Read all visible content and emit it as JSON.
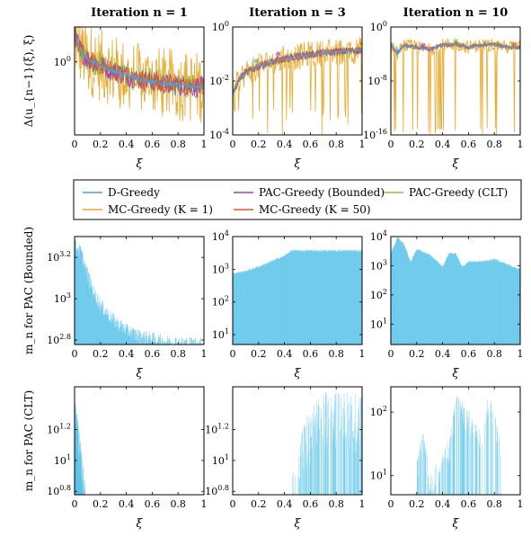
{
  "columns": [
    {
      "title": "Iteration n = 1"
    },
    {
      "title": "Iteration n = 3"
    },
    {
      "title": "Iteration n = 10"
    }
  ],
  "row_ylabels": [
    "Δ(u_{n−1}(ξ), ξ)",
    "m_n for PAC (Bounded)",
    "m_n for PAC (CLT)"
  ],
  "xlabel": "ξ",
  "legend": [
    {
      "name": "D-Greedy",
      "color": "#4aa3d6"
    },
    {
      "name": "PAC-Greedy (Bounded)",
      "color": "#a040b8"
    },
    {
      "name": "PAC-Greedy (CLT)",
      "color": "#8fbf3a"
    },
    {
      "name": "MC-Greedy (K = 1)",
      "color": "#e8a92e"
    },
    {
      "name": "MC-Greedy (K = 50)",
      "color": "#d85a2a"
    }
  ],
  "chart_data": [
    {
      "panel": "r1c1",
      "type": "line",
      "title": "Iteration n = 1",
      "xlabel": "ξ",
      "ylabel": "Δ(u_{n−1}(ξ), ξ)",
      "xlim": [
        0,
        1
      ],
      "xticks": [
        "0",
        "0.2",
        "0.4",
        "0.6",
        "0.8",
        "1"
      ],
      "yscale": "log",
      "ylim": [
        0.1,
        3
      ],
      "yticks": [
        "10^0"
      ],
      "series": [
        {
          "name": "D-Greedy",
          "values": [
            [
              0,
              2.2
            ],
            [
              0.05,
              1.4
            ],
            [
              0.1,
              1.1
            ],
            [
              0.2,
              0.9
            ],
            [
              0.3,
              0.75
            ],
            [
              0.4,
              0.65
            ],
            [
              0.5,
              0.58
            ],
            [
              0.6,
              0.54
            ],
            [
              0.7,
              0.5
            ],
            [
              0.8,
              0.48
            ],
            [
              0.9,
              0.46
            ],
            [
              1,
              0.45
            ]
          ]
        }
      ]
    },
    {
      "panel": "r1c2",
      "type": "line",
      "title": "Iteration n = 3",
      "xlabel": "ξ",
      "ylabel": "",
      "xlim": [
        0,
        1
      ],
      "xticks": [
        "0",
        "0.2",
        "0.4",
        "0.6",
        "0.8",
        "1"
      ],
      "yscale": "log",
      "ylim": [
        0.0001,
        1
      ],
      "yticks": [
        "10^-4",
        "10^-2",
        "10^0"
      ],
      "series": [
        {
          "name": "D-Greedy",
          "values": [
            [
              0,
              0.003
            ],
            [
              0.05,
              0.012
            ],
            [
              0.1,
              0.02
            ],
            [
              0.2,
              0.035
            ],
            [
              0.3,
              0.05
            ],
            [
              0.4,
              0.065
            ],
            [
              0.5,
              0.08
            ],
            [
              0.6,
              0.095
            ],
            [
              0.7,
              0.11
            ],
            [
              0.8,
              0.12
            ],
            [
              0.9,
              0.13
            ],
            [
              1,
              0.14
            ]
          ]
        }
      ]
    },
    {
      "panel": "r1c3",
      "type": "line",
      "title": "Iteration n = 10",
      "xlabel": "ξ",
      "ylabel": "",
      "xlim": [
        0,
        1
      ],
      "xticks": [
        "0",
        "0.2",
        "0.4",
        "0.6",
        "0.8",
        "1"
      ],
      "yscale": "log",
      "ylim": [
        1e-16,
        1
      ],
      "yticks": [
        "10^-16",
        "10^-8",
        "10^0"
      ],
      "series": [
        {
          "name": "D-Greedy",
          "values": [
            [
              0,
              0.003
            ],
            [
              0.05,
              0.0001
            ],
            [
              0.1,
              0.002
            ],
            [
              0.2,
              0.001
            ],
            [
              0.3,
              0.0005
            ],
            [
              0.4,
              0.002
            ],
            [
              0.5,
              0.003
            ],
            [
              0.6,
              0.001
            ],
            [
              0.7,
              0.002
            ],
            [
              0.8,
              0.003
            ],
            [
              0.9,
              0.001
            ],
            [
              1,
              0.001
            ]
          ]
        }
      ]
    },
    {
      "panel": "r2c1",
      "type": "bar",
      "xlabel": "ξ",
      "ylabel": "m_n for PAC (Bounded)",
      "xlim": [
        0,
        1
      ],
      "xticks": [
        "0",
        "0.2",
        "0.4",
        "0.6",
        "0.8",
        "1"
      ],
      "yscale": "log",
      "ylim": [
        600,
        2000
      ],
      "yticks": [
        "10^2.8",
        "10^3",
        "10^3.2"
      ],
      "values": [
        [
          0,
          2000
        ],
        [
          0.05,
          1800
        ],
        [
          0.1,
          1400
        ],
        [
          0.15,
          1150
        ],
        [
          0.2,
          1000
        ],
        [
          0.3,
          850
        ],
        [
          0.4,
          760
        ],
        [
          0.5,
          710
        ],
        [
          0.6,
          690
        ],
        [
          0.7,
          670
        ],
        [
          0.8,
          660
        ],
        [
          0.9,
          655
        ],
        [
          1,
          650
        ]
      ]
    },
    {
      "panel": "r2c2",
      "type": "bar",
      "xlabel": "ξ",
      "ylabel": "",
      "xlim": [
        0,
        1
      ],
      "xticks": [
        "0",
        "0.2",
        "0.4",
        "0.6",
        "0.8",
        "1"
      ],
      "yscale": "log",
      "ylim": [
        5,
        10000
      ],
      "yticks": [
        "10^1",
        "10^2",
        "10^3",
        "10^4"
      ],
      "values": [
        [
          0,
          800
        ],
        [
          0.1,
          950
        ],
        [
          0.2,
          1300
        ],
        [
          0.3,
          1900
        ],
        [
          0.4,
          2800
        ],
        [
          0.45,
          4000
        ],
        [
          0.5,
          4000
        ],
        [
          0.6,
          4000
        ],
        [
          0.7,
          4000
        ],
        [
          0.8,
          4000
        ],
        [
          0.9,
          4000
        ],
        [
          1,
          4000
        ]
      ]
    },
    {
      "panel": "r2c3",
      "type": "bar",
      "xlabel": "ξ",
      "ylabel": "",
      "xlim": [
        0,
        1
      ],
      "xticks": [
        "0",
        "0.2",
        "0.4",
        "0.6",
        "0.8",
        "1"
      ],
      "yscale": "log",
      "ylim": [
        2,
        10000
      ],
      "yticks": [
        "10^1",
        "10^2",
        "10^3",
        "10^4"
      ],
      "values": [
        [
          0,
          3000
        ],
        [
          0.05,
          10000
        ],
        [
          0.1,
          6000
        ],
        [
          0.15,
          1500
        ],
        [
          0.2,
          4000
        ],
        [
          0.3,
          2500
        ],
        [
          0.4,
          1000
        ],
        [
          0.45,
          3000
        ],
        [
          0.5,
          2800
        ],
        [
          0.55,
          1000
        ],
        [
          0.6,
          1500
        ],
        [
          0.7,
          1500
        ],
        [
          0.8,
          1800
        ],
        [
          0.9,
          1200
        ],
        [
          1,
          800
        ]
      ]
    },
    {
      "panel": "r3c1",
      "type": "bar",
      "xlabel": "ξ",
      "ylabel": "m_n for PAC (CLT)",
      "xlim": [
        0,
        1
      ],
      "xticks": [
        "0",
        "0.2",
        "0.4",
        "0.6",
        "0.8",
        "1"
      ],
      "yscale": "log",
      "ylim": [
        6,
        30
      ],
      "yticks": [
        "10^0.8",
        "10^1",
        "10^1.2"
      ],
      "values": [
        [
          0,
          25
        ],
        [
          0.02,
          20
        ],
        [
          0.04,
          14
        ],
        [
          0.06,
          10
        ],
        [
          0.08,
          7
        ]
      ]
    },
    {
      "panel": "r3c2",
      "type": "bar",
      "xlabel": "ξ",
      "ylabel": "",
      "xlim": [
        0,
        1
      ],
      "xticks": [
        "0",
        "0.2",
        "0.4",
        "0.6",
        "0.8",
        "1"
      ],
      "yscale": "log",
      "ylim": [
        6,
        30
      ],
      "yticks": [
        "10^0.8",
        "10^1",
        "10^1.2"
      ],
      "values": [
        [
          0.45,
          8
        ],
        [
          0.5,
          12
        ],
        [
          0.55,
          18
        ],
        [
          0.6,
          22
        ],
        [
          0.7,
          28
        ],
        [
          0.8,
          28
        ],
        [
          0.9,
          28
        ],
        [
          1,
          28
        ]
      ]
    },
    {
      "panel": "r3c3",
      "type": "bar",
      "xlabel": "ξ",
      "ylabel": "",
      "xlim": [
        0,
        1
      ],
      "xticks": [
        "0",
        "0.2",
        "0.4",
        "0.6",
        "0.8",
        "1"
      ],
      "yscale": "log",
      "ylim": [
        5,
        250
      ],
      "yticks": [
        "10^1",
        "10^2"
      ],
      "values": [
        [
          0.2,
          20
        ],
        [
          0.25,
          60
        ],
        [
          0.3,
          10
        ],
        [
          0.45,
          40
        ],
        [
          0.5,
          200
        ],
        [
          0.55,
          150
        ],
        [
          0.7,
          60
        ],
        [
          0.75,
          200
        ],
        [
          0.8,
          120
        ],
        [
          0.85,
          30
        ]
      ]
    }
  ]
}
